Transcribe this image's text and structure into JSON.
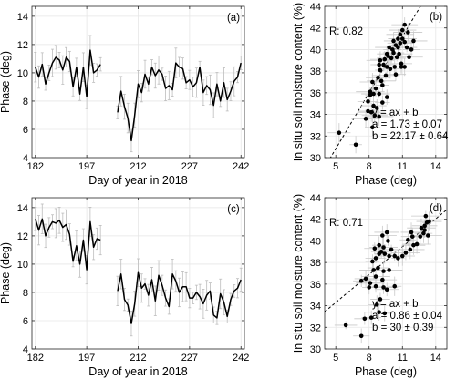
{
  "chart_data": [
    {
      "panel": "(a)",
      "type": "line",
      "xlabel": "Day of year in 2018",
      "ylabel": "Phase (deg)",
      "xticks": [
        182,
        197,
        212,
        227,
        242
      ],
      "yticks": [
        4,
        6,
        8,
        10,
        12,
        14
      ],
      "xlim": [
        181,
        243
      ],
      "ylim": [
        4,
        14.7
      ],
      "grid": true,
      "error_bars": true,
      "segments": [
        {
          "x": [
            182,
            183,
            184,
            185,
            186,
            187,
            188,
            189,
            190,
            191,
            192,
            193,
            194,
            195,
            196,
            197,
            198,
            199,
            200,
            201
          ],
          "y": [
            10.4,
            9.7,
            10.6,
            9.2,
            10.0,
            10.7,
            11.1,
            10.9,
            10.2,
            11.1,
            10.8,
            9.0,
            10.4,
            8.5,
            10.4,
            8.3,
            11.6,
            10.0,
            10.2,
            10.6
          ]
        },
        {
          "x": [
            206,
            207,
            208,
            209,
            210,
            211,
            212,
            213,
            214,
            215,
            216,
            217,
            218,
            219,
            220,
            221,
            222,
            223,
            224,
            225,
            226,
            227,
            228,
            229,
            230,
            231,
            232,
            233,
            234,
            235,
            236,
            237,
            238,
            239,
            240,
            241,
            242
          ],
          "y": [
            7.2,
            8.7,
            7.6,
            6.8,
            5.2,
            7.0,
            9.2,
            8.6,
            9.9,
            9.2,
            10.4,
            9.8,
            10.2,
            9.9,
            8.9,
            9.1,
            8.8,
            10.7,
            10.4,
            10.3,
            9.3,
            9.5,
            9.0,
            9.3,
            10.4,
            8.6,
            9.1,
            8.8,
            7.7,
            9.2,
            8.0,
            9.3,
            8.1,
            8.7,
            9.4,
            9.7,
            10.7
          ]
        }
      ]
    },
    {
      "panel": "(b)",
      "type": "scatter",
      "xlabel": "Phase (deg)",
      "ylabel": "In situ soil moisture content (%)",
      "xticks": [
        5,
        8,
        11,
        14
      ],
      "yticks": [
        30,
        32,
        34,
        36,
        38,
        40,
        42,
        44
      ],
      "xlim": [
        4,
        15
      ],
      "ylim": [
        30,
        44
      ],
      "grid": true,
      "error_bars": true,
      "correlation": "R: 0.82",
      "fit_lines": [
        "y = ax + b",
        "a = 1.73 ± 0.07",
        "b = 22.17 ± 0.64"
      ],
      "fit": {
        "a": 1.73,
        "b": 22.17
      },
      "points": [
        [
          5.3,
          32.3
        ],
        [
          6.8,
          31.2
        ],
        [
          8.3,
          32.8
        ],
        [
          7.7,
          33.6
        ],
        [
          7.9,
          34.3
        ],
        [
          8.2,
          34.2
        ],
        [
          8.5,
          33.9
        ],
        [
          8.9,
          33.8
        ],
        [
          7.9,
          35.2
        ],
        [
          8.4,
          34.8
        ],
        [
          8.7,
          34.6
        ],
        [
          8.1,
          35.8
        ],
        [
          8.4,
          35.9
        ],
        [
          8.9,
          35.9
        ],
        [
          9.2,
          35.1
        ],
        [
          9.6,
          35.6
        ],
        [
          8.1,
          36.1
        ],
        [
          8.6,
          36.4
        ],
        [
          8.3,
          37.0
        ],
        [
          8.8,
          37.4
        ],
        [
          9.1,
          37.1
        ],
        [
          9.2,
          36.7
        ],
        [
          9.5,
          37.6
        ],
        [
          9.0,
          38.1
        ],
        [
          8.9,
          38.6
        ],
        [
          9.0,
          39.0
        ],
        [
          9.3,
          38.6
        ],
        [
          9.6,
          38.4
        ],
        [
          9.9,
          38.2
        ],
        [
          10.3,
          38.4
        ],
        [
          10.4,
          37.7
        ],
        [
          9.4,
          39.1
        ],
        [
          9.7,
          39.4
        ],
        [
          10.0,
          39.2
        ],
        [
          9.6,
          39.6
        ],
        [
          10.2,
          39.7
        ],
        [
          10.5,
          39.3
        ],
        [
          10.9,
          38.7
        ],
        [
          10.9,
          38.4
        ],
        [
          11.2,
          38.4
        ],
        [
          10.1,
          40.0
        ],
        [
          10.4,
          40.4
        ],
        [
          10.6,
          40.2
        ],
        [
          10.8,
          40.6
        ],
        [
          10.2,
          40.8
        ],
        [
          10.6,
          41.0
        ],
        [
          10.8,
          41.4
        ],
        [
          11.0,
          41.0
        ],
        [
          11.2,
          40.7
        ],
        [
          11.4,
          40.2
        ],
        [
          11.6,
          39.3
        ],
        [
          11.0,
          41.8
        ],
        [
          11.2,
          42.3
        ],
        [
          11.5,
          41.6
        ],
        [
          12.0,
          40.8
        ],
        [
          10.7,
          39.6
        ],
        [
          9.8,
          40.2
        ],
        [
          11.8,
          40.0
        ]
      ]
    },
    {
      "panel": "(c)",
      "type": "line",
      "xlabel": "Day of year in 2018",
      "ylabel": "Phase (deg)",
      "xticks": [
        182,
        197,
        212,
        227,
        242
      ],
      "yticks": [
        4,
        6,
        8,
        10,
        12,
        14
      ],
      "xlim": [
        181,
        243
      ],
      "ylim": [
        4,
        14.7
      ],
      "grid": true,
      "error_bars": true,
      "segments": [
        {
          "x": [
            182,
            183,
            184,
            185,
            186,
            187,
            188,
            189,
            190,
            191,
            192,
            193,
            194,
            195,
            196,
            197,
            198,
            199,
            200,
            201
          ],
          "y": [
            13.2,
            12.4,
            13.2,
            12.0,
            12.6,
            13.0,
            12.9,
            13.1,
            12.6,
            12.8,
            12.1,
            10.2,
            11.3,
            10.0,
            11.7,
            9.6,
            13.0,
            11.2,
            11.8,
            11.7
          ]
        },
        {
          "x": [
            206,
            207,
            208,
            209,
            210,
            211,
            212,
            213,
            214,
            215,
            216,
            217,
            218,
            219,
            220,
            221,
            222,
            223,
            224,
            225,
            226,
            227,
            228,
            229,
            230,
            231,
            232,
            233,
            234,
            235,
            236,
            237,
            238,
            239,
            240,
            241,
            242
          ],
          "y": [
            8.1,
            9.3,
            7.5,
            7.1,
            5.8,
            7.2,
            9.4,
            8.3,
            8.6,
            7.8,
            8.9,
            7.4,
            9.2,
            8.5,
            7.6,
            7.0,
            9.3,
            8.8,
            8.0,
            8.4,
            8.4,
            7.6,
            7.6,
            8.0,
            7.7,
            7.2,
            7.8,
            8.1,
            6.4,
            6.2,
            7.9,
            7.3,
            6.3,
            7.5,
            8.1,
            8.3,
            8.9
          ]
        }
      ]
    },
    {
      "panel": "(d)",
      "type": "scatter",
      "xlabel": "Phase (deg)",
      "ylabel": "In situ soil moisture content (%)",
      "xticks": [
        5,
        8,
        11,
        14
      ],
      "yticks": [
        30,
        32,
        34,
        36,
        38,
        40,
        42,
        44
      ],
      "xlim": [
        4,
        15
      ],
      "ylim": [
        30,
        44
      ],
      "grid": true,
      "error_bars": true,
      "correlation": "R: 0.71",
      "fit_lines": [
        "y = ax + b",
        "a = 0.86 ± 0.04",
        "b = 30 ± 0.39"
      ],
      "fit": {
        "a": 0.86,
        "b": 30
      },
      "points": [
        [
          5.9,
          32.2
        ],
        [
          7.3,
          31.2
        ],
        [
          7.6,
          32.8
        ],
        [
          8.2,
          32.9
        ],
        [
          8.9,
          33.4
        ],
        [
          9.4,
          33.3
        ],
        [
          8.7,
          34.1
        ],
        [
          9.0,
          34.6
        ],
        [
          8.0,
          35.7
        ],
        [
          8.6,
          35.8
        ],
        [
          9.3,
          35.7
        ],
        [
          9.6,
          35.5
        ],
        [
          10.3,
          35.8
        ],
        [
          7.3,
          36.3
        ],
        [
          7.7,
          36.5
        ],
        [
          8.1,
          36.1
        ],
        [
          8.6,
          36.7
        ],
        [
          9.2,
          36.4
        ],
        [
          8.4,
          37.3
        ],
        [
          8.8,
          37.5
        ],
        [
          9.3,
          37.2
        ],
        [
          9.8,
          37.3
        ],
        [
          8.3,
          38.1
        ],
        [
          8.6,
          38.4
        ],
        [
          8.9,
          38.8
        ],
        [
          9.1,
          39.0
        ],
        [
          9.4,
          38.8
        ],
        [
          9.8,
          38.6
        ],
        [
          8.5,
          39.3
        ],
        [
          8.9,
          39.6
        ],
        [
          9.3,
          39.4
        ],
        [
          9.7,
          40.0
        ],
        [
          9.6,
          40.8
        ],
        [
          9.2,
          40.5
        ],
        [
          10.0,
          39.2
        ],
        [
          10.3,
          38.6
        ],
        [
          10.6,
          38.4
        ],
        [
          11.0,
          38.6
        ],
        [
          11.3,
          38.9
        ],
        [
          11.7,
          39.2
        ],
        [
          12.0,
          39.6
        ],
        [
          11.5,
          40.1
        ],
        [
          11.9,
          40.4
        ],
        [
          12.3,
          39.7
        ],
        [
          12.6,
          40.4
        ],
        [
          12.9,
          40.7
        ],
        [
          13.0,
          41.4
        ],
        [
          13.2,
          41.7
        ],
        [
          13.0,
          41.0
        ],
        [
          12.7,
          41.2
        ],
        [
          13.3,
          40.5
        ],
        [
          13.4,
          41.8
        ],
        [
          13.1,
          42.3
        ],
        [
          11.8,
          40.8
        ]
      ]
    }
  ]
}
